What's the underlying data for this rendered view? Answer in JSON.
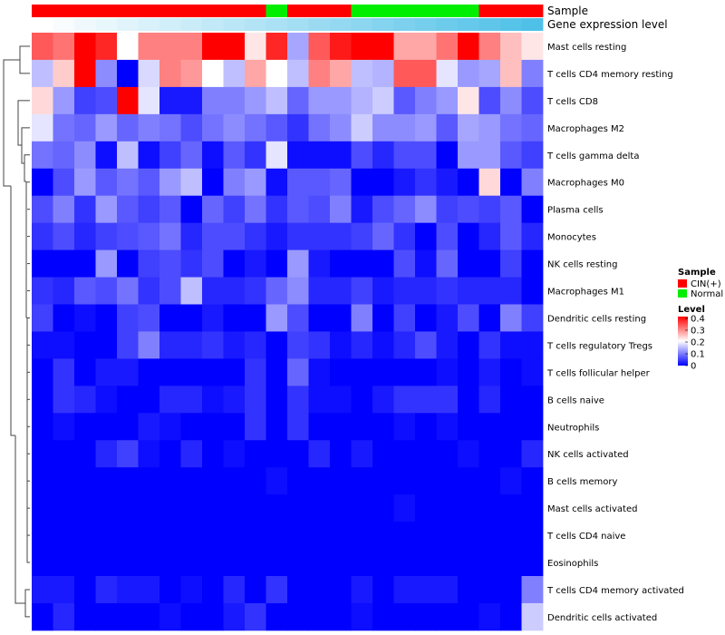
{
  "chart_data": {
    "type": "heatmap",
    "annotation_tracks": {
      "sample": {
        "label": "Sample",
        "values": [
          "CIN(+)",
          "CIN(+)",
          "CIN(+)",
          "CIN(+)",
          "CIN(+)",
          "CIN(+)",
          "CIN(+)",
          "CIN(+)",
          "CIN(+)",
          "CIN(+)",
          "CIN(+)",
          "Normal",
          "CIN(+)",
          "CIN(+)",
          "CIN(+)",
          "Normal",
          "Normal",
          "Normal",
          "Normal",
          "Normal",
          "Normal",
          "CIN(+)",
          "CIN(+)",
          "CIN(+)"
        ]
      },
      "gene_expression": {
        "label": "Gene expression level",
        "values": [
          0.0,
          0.04,
          0.09,
          0.13,
          0.17,
          0.22,
          0.26,
          0.3,
          0.35,
          0.39,
          0.43,
          0.48,
          0.52,
          0.57,
          0.61,
          0.65,
          0.7,
          0.74,
          0.78,
          0.83,
          0.87,
          0.91,
          0.96,
          1.0
        ]
      }
    },
    "rows": [
      "Mast cells resting",
      "T cells CD4 memory resting",
      "T cells CD8",
      "Macrophages M2",
      "T cells gamma delta",
      "Macrophages M0",
      "Plasma cells",
      "Monocytes",
      "NK cells resting",
      "Macrophages M1",
      "Dendritic cells resting",
      "T cells regulatory  Tregs",
      "T cells follicular helper",
      "B cells naive",
      "Neutrophils",
      "NK cells activated",
      "B cells memory",
      "Mast cells activated",
      "T cells CD4 naive",
      "Eosinophils",
      "T cells CD4 memory activated",
      "Dendritic cells activated"
    ],
    "values": [
      [
        0.33,
        0.31,
        0.4,
        0.37,
        0.2,
        0.3,
        0.3,
        0.3,
        0.4,
        0.4,
        0.22,
        0.37,
        0.13,
        0.33,
        0.38,
        0.4,
        0.4,
        0.27,
        0.27,
        0.31,
        0.4,
        0.3,
        0.25,
        0.22
      ],
      [
        0.15,
        0.24,
        0.4,
        0.11,
        0.0,
        0.17,
        0.3,
        0.28,
        0.2,
        0.15,
        0.27,
        0.2,
        0.15,
        0.3,
        0.27,
        0.15,
        0.14,
        0.33,
        0.33,
        0.18,
        0.12,
        0.13,
        0.25,
        0.1
      ],
      [
        0.23,
        0.12,
        0.05,
        0.06,
        0.4,
        0.18,
        0.02,
        0.02,
        0.1,
        0.1,
        0.12,
        0.15,
        0.08,
        0.12,
        0.12,
        0.14,
        0.16,
        0.07,
        0.1,
        0.12,
        0.22,
        0.06,
        0.11,
        0.06
      ],
      [
        0.18,
        0.09,
        0.08,
        0.12,
        0.08,
        0.1,
        0.09,
        0.06,
        0.09,
        0.11,
        0.09,
        0.07,
        0.04,
        0.09,
        0.11,
        0.16,
        0.11,
        0.11,
        0.12,
        0.07,
        0.13,
        0.12,
        0.09,
        0.08
      ],
      [
        0.09,
        0.08,
        0.11,
        0.01,
        0.15,
        0.01,
        0.05,
        0.08,
        0.01,
        0.07,
        0.04,
        0.18,
        0.01,
        0.01,
        0.01,
        0.06,
        0.03,
        0.06,
        0.06,
        0.0,
        0.12,
        0.12,
        0.07,
        0.05
      ],
      [
        0.0,
        0.06,
        0.12,
        0.07,
        0.09,
        0.07,
        0.12,
        0.15,
        0.0,
        0.1,
        0.12,
        0.01,
        0.07,
        0.07,
        0.08,
        0.0,
        0.0,
        0.02,
        0.04,
        0.02,
        0.0,
        0.23,
        0.0,
        0.1
      ],
      [
        0.06,
        0.1,
        0.04,
        0.12,
        0.07,
        0.05,
        0.07,
        0.0,
        0.08,
        0.05,
        0.09,
        0.04,
        0.07,
        0.06,
        0.1,
        0.02,
        0.06,
        0.08,
        0.11,
        0.05,
        0.06,
        0.05,
        0.07,
        0.0
      ],
      [
        0.04,
        0.06,
        0.03,
        0.05,
        0.06,
        0.07,
        0.09,
        0.03,
        0.06,
        0.06,
        0.04,
        0.02,
        0.04,
        0.04,
        0.04,
        0.05,
        0.08,
        0.04,
        0.0,
        0.06,
        0.0,
        0.03,
        0.07,
        0.03
      ],
      [
        0.0,
        0.0,
        0.0,
        0.12,
        0.0,
        0.05,
        0.06,
        0.04,
        0.06,
        0.0,
        0.02,
        0.0,
        0.12,
        0.02,
        0.0,
        0.0,
        0.0,
        0.06,
        0.01,
        0.08,
        0.0,
        0.0,
        0.05,
        0.0
      ],
      [
        0.04,
        0.03,
        0.07,
        0.06,
        0.09,
        0.04,
        0.06,
        0.15,
        0.03,
        0.03,
        0.04,
        0.08,
        0.11,
        0.03,
        0.03,
        0.05,
        0.02,
        0.03,
        0.03,
        0.04,
        0.03,
        0.03,
        0.03,
        0.0
      ],
      [
        0.05,
        0.0,
        0.01,
        0.0,
        0.05,
        0.06,
        0.0,
        0.0,
        0.02,
        0.0,
        0.0,
        0.12,
        0.06,
        0.0,
        0.0,
        0.1,
        0.0,
        0.05,
        0.0,
        0.02,
        0.06,
        0.0,
        0.1,
        0.05
      ],
      [
        0.01,
        0.01,
        0.0,
        0.0,
        0.05,
        0.1,
        0.03,
        0.03,
        0.04,
        0.02,
        0.03,
        0.0,
        0.05,
        0.04,
        0.01,
        0.03,
        0.01,
        0.03,
        0.06,
        0.02,
        0.0,
        0.04,
        0.01,
        0.01
      ],
      [
        0.0,
        0.04,
        0.0,
        0.02,
        0.02,
        0.0,
        0.0,
        0.0,
        0.0,
        0.0,
        0.04,
        0.0,
        0.08,
        0.01,
        0.0,
        0.0,
        0.0,
        0.0,
        0.0,
        0.01,
        0.0,
        0.02,
        0.0,
        0.01
      ],
      [
        0.0,
        0.04,
        0.03,
        0.01,
        0.0,
        0.0,
        0.03,
        0.03,
        0.01,
        0.02,
        0.04,
        0.0,
        0.04,
        0.01,
        0.01,
        0.0,
        0.02,
        0.04,
        0.04,
        0.04,
        0.0,
        0.03,
        0.0,
        0.0
      ],
      [
        0.0,
        0.01,
        0.0,
        0.0,
        0.0,
        0.02,
        0.01,
        0.0,
        0.0,
        0.0,
        0.04,
        0.0,
        0.04,
        0.0,
        0.0,
        0.0,
        0.0,
        0.01,
        0.0,
        0.01,
        0.0,
        0.0,
        0.0,
        0.0
      ],
      [
        0.0,
        0.0,
        0.0,
        0.03,
        0.05,
        0.01,
        0.0,
        0.03,
        0.0,
        0.01,
        0.0,
        0.0,
        0.0,
        0.03,
        0.0,
        0.02,
        0.0,
        0.0,
        0.0,
        0.0,
        0.01,
        0.0,
        0.0,
        0.03
      ],
      [
        0.0,
        0.0,
        0.0,
        0.0,
        0.0,
        0.0,
        0.0,
        0.0,
        0.0,
        0.0,
        0.0,
        0.01,
        0.0,
        0.0,
        0.0,
        0.0,
        0.0,
        0.0,
        0.0,
        0.0,
        0.0,
        0.0,
        0.01,
        0.0
      ],
      [
        0.0,
        0.0,
        0.0,
        0.0,
        0.0,
        0.0,
        0.0,
        0.0,
        0.0,
        0.0,
        0.0,
        0.0,
        0.0,
        0.0,
        0.0,
        0.0,
        0.0,
        0.01,
        0.0,
        0.0,
        0.0,
        0.0,
        0.0,
        0.0
      ],
      [
        0.0,
        0.0,
        0.0,
        0.0,
        0.0,
        0.0,
        0.0,
        0.0,
        0.0,
        0.0,
        0.0,
        0.0,
        0.0,
        0.0,
        0.0,
        0.0,
        0.0,
        0.0,
        0.0,
        0.0,
        0.0,
        0.0,
        0.0,
        0.0
      ],
      [
        0.0,
        0.0,
        0.0,
        0.0,
        0.0,
        0.0,
        0.0,
        0.0,
        0.0,
        0.0,
        0.0,
        0.0,
        0.0,
        0.0,
        0.0,
        0.0,
        0.0,
        0.0,
        0.0,
        0.0,
        0.0,
        0.0,
        0.0,
        0.0
      ],
      [
        0.02,
        0.02,
        0.0,
        0.03,
        0.02,
        0.02,
        0.0,
        0.01,
        0.0,
        0.03,
        0.0,
        0.04,
        0.0,
        0.0,
        0.0,
        0.02,
        0.0,
        0.02,
        0.02,
        0.02,
        0.0,
        0.0,
        0.0,
        0.1
      ],
      [
        0.0,
        0.03,
        0.0,
        0.0,
        0.0,
        0.0,
        0.01,
        0.0,
        0.0,
        0.02,
        0.04,
        0.0,
        0.0,
        0.0,
        0.0,
        0.01,
        0.0,
        0.0,
        0.0,
        0.0,
        0.0,
        0.01,
        0.0,
        0.16
      ]
    ],
    "legend": {
      "sample_title": "Sample",
      "sample_entries": [
        {
          "label": "CIN(+)",
          "color": "#ff0000"
        },
        {
          "label": "Normal",
          "color": "#00ee00"
        }
      ],
      "level_title": "Level",
      "level_ticks": [
        "0.4",
        "0.3",
        "0.2",
        "0.1",
        "0"
      ],
      "level_range": [
        0,
        0.4
      ]
    },
    "colors": {
      "low": "#0000ff",
      "mid": "#ffffff",
      "high": "#ff0000",
      "gene_low": "#ffffff",
      "gene_high": "#4fc0e8"
    }
  }
}
